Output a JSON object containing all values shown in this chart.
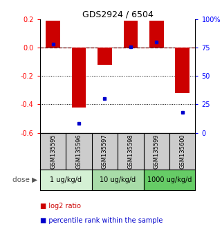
{
  "title": "GDS2924 / 6504",
  "samples": [
    "GSM135595",
    "GSM135596",
    "GSM135597",
    "GSM135598",
    "GSM135599",
    "GSM135600"
  ],
  "log2_ratios": [
    0.19,
    -0.42,
    -0.12,
    0.19,
    0.19,
    -0.32
  ],
  "percentile_ranks": [
    78,
    8,
    30,
    76,
    80,
    18
  ],
  "bar_color": "#cc0000",
  "dot_color": "#0000cc",
  "ylim_left": [
    -0.6,
    0.2
  ],
  "ylim_right": [
    0,
    100
  ],
  "yticks_left": [
    0.2,
    0.0,
    -0.2,
    -0.4,
    -0.6
  ],
  "yticks_right": [
    100,
    75,
    50,
    25,
    0
  ],
  "legend_red_label": "log2 ratio",
  "legend_blue_label": "percentile rank within the sample",
  "bg_color_samples": "#cccccc",
  "bg_color_dose1": "#d4f0d4",
  "bg_color_dose2": "#a8dca8",
  "bg_color_dose3": "#66cc66",
  "dose_labels": [
    "1 ug/kg/d",
    "10 ug/kg/d",
    "1000 ug/kg/d"
  ]
}
